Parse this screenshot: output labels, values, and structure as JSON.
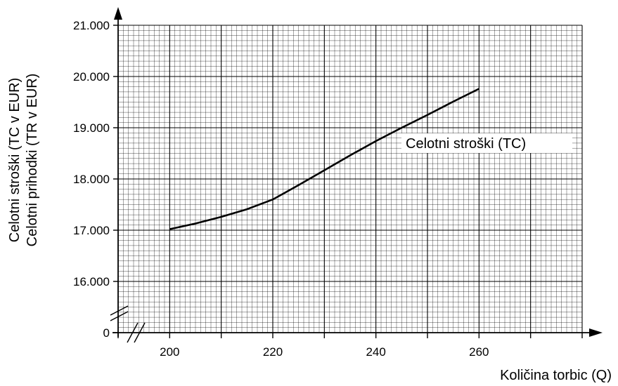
{
  "chart_data": {
    "type": "line",
    "ylabel_line1": "Celotni stroški (TC v EUR)",
    "ylabel_line2": "Celotni prihodki (TR v EUR)",
    "xlabel": "Količina torbic (Q)",
    "x_ticks": [
      "200",
      "220",
      "240",
      "260"
    ],
    "y_ticks": [
      "0",
      "16.000",
      "17.000",
      "18.000",
      "19.000",
      "20.000",
      "21.000"
    ],
    "xlim": [
      190,
      280
    ],
    "ylim": [
      15000,
      21000
    ],
    "axis_break": true,
    "grid": true,
    "series": [
      {
        "name": "Celotni stroški (TC)",
        "color": "#000000",
        "x": [
          200,
          205,
          210,
          215,
          220,
          225,
          230,
          235,
          240,
          245,
          250,
          255,
          260
        ],
        "y": [
          17020,
          17130,
          17260,
          17410,
          17600,
          17880,
          18170,
          18460,
          18740,
          19000,
          19250,
          19510,
          19760
        ]
      }
    ]
  }
}
